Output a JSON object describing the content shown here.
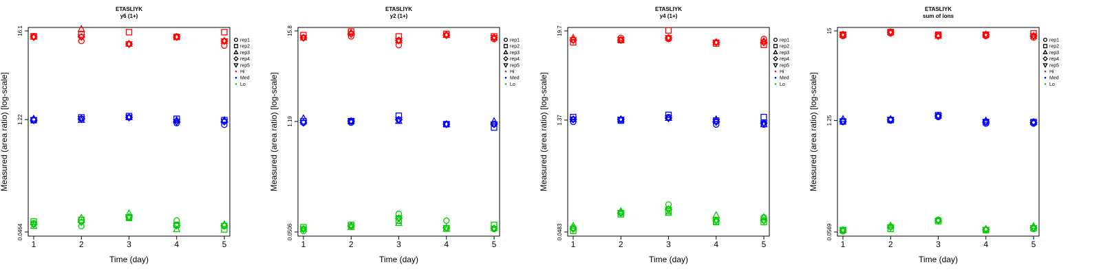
{
  "chart_data": [
    {
      "type": "scatter",
      "title": "ETASLIYK",
      "subtitle": "y6 (1+)",
      "xlabel": "Time (day)",
      "ylabel": "Measured (area ratio) [log-scale]",
      "log_y": true,
      "x_ticks": [
        1,
        2,
        3,
        4,
        5
      ],
      "y_ticks": [
        {
          "value": 0.0464,
          "label": "0.0464"
        },
        {
          "value": 1.22,
          "label": "1.22"
        },
        {
          "value": 16.1,
          "label": "16.1"
        }
      ],
      "ylim": [
        0.0464,
        16.1
      ],
      "legend_position": "right",
      "series": [
        {
          "rep": "rep1",
          "level": "Hi",
          "values": [
            13.5,
            12.0,
            11.0,
            13.5,
            10.5
          ]
        },
        {
          "rep": "rep2",
          "level": "Hi",
          "values": [
            13.8,
            14.5,
            15.5,
            13.5,
            15.5
          ]
        },
        {
          "rep": "rep3",
          "level": "Hi",
          "values": [
            13.5,
            17.0,
            11.0,
            13.5,
            12.0
          ]
        },
        {
          "rep": "rep4",
          "level": "Hi",
          "values": [
            13.5,
            13.5,
            11.0,
            13.5,
            12.0
          ]
        },
        {
          "rep": "rep5",
          "level": "Hi",
          "values": [
            13.5,
            13.5,
            11.0,
            13.5,
            12.0
          ]
        },
        {
          "rep": "rep1",
          "level": "Med",
          "values": [
            1.2,
            1.25,
            1.3,
            1.1,
            1.05
          ]
        },
        {
          "rep": "rep2",
          "level": "Med",
          "values": [
            1.2,
            1.3,
            1.35,
            1.25,
            1.2
          ]
        },
        {
          "rep": "rep3",
          "level": "Med",
          "values": [
            1.25,
            1.2,
            1.3,
            1.2,
            1.2
          ]
        },
        {
          "rep": "rep4",
          "level": "Med",
          "values": [
            1.2,
            1.25,
            1.3,
            1.15,
            1.15
          ]
        },
        {
          "rep": "rep5",
          "level": "Med",
          "values": [
            1.2,
            1.25,
            1.3,
            1.15,
            1.15
          ]
        },
        {
          "rep": "rep1",
          "level": "Lo",
          "values": [
            0.06,
            0.055,
            0.07,
            0.065,
            0.055
          ]
        },
        {
          "rep": "rep2",
          "level": "Lo",
          "values": [
            0.063,
            0.066,
            0.07,
            0.057,
            0.05
          ]
        },
        {
          "rep": "rep3",
          "level": "Lo",
          "values": [
            0.055,
            0.07,
            0.08,
            0.05,
            0.058
          ]
        },
        {
          "rep": "rep4",
          "level": "Lo",
          "values": [
            0.058,
            0.062,
            0.072,
            0.056,
            0.056
          ]
        },
        {
          "rep": "rep5",
          "level": "Lo",
          "values": [
            0.058,
            0.062,
            0.072,
            0.056,
            0.056
          ]
        }
      ]
    },
    {
      "type": "scatter",
      "title": "ETASLIYK",
      "subtitle": "y2 (1+)",
      "xlabel": "Time (day)",
      "ylabel": "Measured (area ratio) [log-scale]",
      "log_y": true,
      "x_ticks": [
        1,
        2,
        3,
        4,
        5
      ],
      "y_ticks": [
        {
          "value": 0.0506,
          "label": "0.0506"
        },
        {
          "value": 1.19,
          "label": "1.19"
        },
        {
          "value": 15.8,
          "label": "15.8"
        }
      ],
      "ylim": [
        0.0506,
        15.8
      ],
      "legend_position": "right",
      "series": [
        {
          "rep": "rep1",
          "level": "Hi",
          "values": [
            13.0,
            13.5,
            10.5,
            14.0,
            12.5
          ]
        },
        {
          "rep": "rep2",
          "level": "Hi",
          "values": [
            14.0,
            15.5,
            13.5,
            14.5,
            13.5
          ]
        },
        {
          "rep": "rep3",
          "level": "Hi",
          "values": [
            13.0,
            15.0,
            12.0,
            14.0,
            13.0
          ]
        },
        {
          "rep": "rep4",
          "level": "Hi",
          "values": [
            13.0,
            14.5,
            12.0,
            14.0,
            13.0
          ]
        },
        {
          "rep": "rep5",
          "level": "Hi",
          "values": [
            13.0,
            14.5,
            12.0,
            14.0,
            13.0
          ]
        },
        {
          "rep": "rep1",
          "level": "Med",
          "values": [
            1.15,
            1.15,
            1.25,
            1.1,
            1.1
          ]
        },
        {
          "rep": "rep2",
          "level": "Med",
          "values": [
            1.2,
            1.2,
            1.4,
            1.1,
            1.0
          ]
        },
        {
          "rep": "rep3",
          "level": "Med",
          "values": [
            1.3,
            1.2,
            1.2,
            1.1,
            1.2
          ]
        },
        {
          "rep": "rep4",
          "level": "Med",
          "values": [
            1.15,
            1.2,
            1.25,
            1.1,
            1.1
          ]
        },
        {
          "rep": "rep5",
          "level": "Med",
          "values": [
            1.15,
            1.2,
            1.25,
            1.1,
            1.1
          ]
        },
        {
          "rep": "rep1",
          "level": "Lo",
          "values": [
            0.052,
            0.06,
            0.085,
            0.07,
            0.055
          ]
        },
        {
          "rep": "rep2",
          "level": "Lo",
          "values": [
            0.058,
            0.062,
            0.07,
            0.056,
            0.062
          ]
        },
        {
          "rep": "rep3",
          "level": "Lo",
          "values": [
            0.055,
            0.058,
            0.065,
            0.055,
            0.056
          ]
        },
        {
          "rep": "rep4",
          "level": "Lo",
          "values": [
            0.055,
            0.06,
            0.075,
            0.057,
            0.056
          ]
        },
        {
          "rep": "rep5",
          "level": "Lo",
          "values": [
            0.055,
            0.06,
            0.075,
            0.057,
            0.056
          ]
        }
      ]
    },
    {
      "type": "scatter",
      "title": "ETASLIYK",
      "subtitle": "y4 (1+)",
      "xlabel": "Time (day)",
      "ylabel": "Measured (area ratio) [log-scale]",
      "log_y": true,
      "x_ticks": [
        1,
        2,
        3,
        4,
        5
      ],
      "y_ticks": [
        {
          "value": 0.0483,
          "label": "0.0483"
        },
        {
          "value": 1.37,
          "label": "1.37"
        },
        {
          "value": 19.7,
          "label": "19.7"
        }
      ],
      "ylim": [
        0.0483,
        19.7
      ],
      "legend_position": "right",
      "series": [
        {
          "rep": "rep1",
          "level": "Hi",
          "values": [
            15.0,
            16.0,
            15.5,
            14.0,
            15.5
          ]
        },
        {
          "rep": "rep2",
          "level": "Hi",
          "values": [
            14.0,
            15.0,
            20.0,
            13.5,
            13.0
          ]
        },
        {
          "rep": "rep3",
          "level": "Hi",
          "values": [
            16.0,
            15.0,
            16.0,
            14.0,
            14.5
          ]
        },
        {
          "rep": "rep4",
          "level": "Hi",
          "values": [
            15.0,
            15.0,
            16.0,
            14.0,
            14.0
          ]
        },
        {
          "rep": "rep5",
          "level": "Hi",
          "values": [
            15.0,
            15.0,
            16.0,
            14.0,
            14.0
          ]
        },
        {
          "rep": "rep1",
          "level": "Med",
          "values": [
            1.3,
            1.35,
            1.5,
            1.2,
            1.2
          ]
        },
        {
          "rep": "rep2",
          "level": "Med",
          "values": [
            1.5,
            1.35,
            1.6,
            1.35,
            1.5
          ]
        },
        {
          "rep": "rep3",
          "level": "Med",
          "values": [
            1.4,
            1.4,
            1.45,
            1.4,
            1.2
          ]
        },
        {
          "rep": "rep4",
          "level": "Med",
          "values": [
            1.4,
            1.4,
            1.45,
            1.3,
            1.25
          ]
        },
        {
          "rep": "rep5",
          "level": "Med",
          "values": [
            1.4,
            1.4,
            1.45,
            1.3,
            1.25
          ]
        },
        {
          "rep": "rep1",
          "level": "Lo",
          "values": [
            0.055,
            0.085,
            0.11,
            0.065,
            0.075
          ]
        },
        {
          "rep": "rep2",
          "level": "Lo",
          "values": [
            0.05,
            0.082,
            0.09,
            0.065,
            0.065
          ]
        },
        {
          "rep": "rep3",
          "level": "Lo",
          "values": [
            0.058,
            0.09,
            0.085,
            0.08,
            0.075
          ]
        },
        {
          "rep": "rep4",
          "level": "Lo",
          "values": [
            0.053,
            0.086,
            0.095,
            0.068,
            0.068
          ]
        },
        {
          "rep": "rep5",
          "level": "Lo",
          "values": [
            0.053,
            0.086,
            0.095,
            0.068,
            0.068
          ]
        }
      ]
    },
    {
      "type": "scatter",
      "title": "ETASLIYK",
      "subtitle": "sum of ions",
      "xlabel": "Time (day)",
      "ylabel": "Measured (area ratio) [log-scale]",
      "log_y": true,
      "x_ticks": [
        1,
        2,
        3,
        4,
        5
      ],
      "y_ticks": [
        {
          "value": 0.0569,
          "label": "0.0569"
        },
        {
          "value": 1.25,
          "label": "1.25"
        },
        {
          "value": 15,
          "label": "15"
        }
      ],
      "ylim": [
        0.0569,
        15
      ],
      "legend_position": "right",
      "series": [
        {
          "rep": "rep1",
          "level": "Hi",
          "values": [
            13.0,
            14.0,
            13.5,
            13.0,
            12.5
          ]
        },
        {
          "rep": "rep2",
          "level": "Hi",
          "values": [
            13.5,
            14.5,
            13.5,
            13.5,
            14.0
          ]
        },
        {
          "rep": "rep3",
          "level": "Hi",
          "values": [
            13.5,
            14.5,
            13.0,
            13.5,
            13.0
          ]
        },
        {
          "rep": "rep4",
          "level": "Hi",
          "values": [
            13.5,
            14.5,
            13.0,
            13.5,
            13.0
          ]
        },
        {
          "rep": "rep5",
          "level": "Hi",
          "values": [
            13.5,
            14.5,
            13.0,
            13.5,
            13.0
          ]
        },
        {
          "rep": "rep1",
          "level": "Med",
          "values": [
            1.2,
            1.25,
            1.38,
            1.15,
            1.15
          ]
        },
        {
          "rep": "rep2",
          "level": "Med",
          "values": [
            1.22,
            1.27,
            1.45,
            1.2,
            1.2
          ]
        },
        {
          "rep": "rep3",
          "level": "Med",
          "values": [
            1.3,
            1.3,
            1.42,
            1.25,
            1.2
          ]
        },
        {
          "rep": "rep4",
          "level": "Med",
          "values": [
            1.22,
            1.27,
            1.42,
            1.2,
            1.18
          ]
        },
        {
          "rep": "rep5",
          "level": "Med",
          "values": [
            1.22,
            1.27,
            1.42,
            1.2,
            1.18
          ]
        },
        {
          "rep": "rep1",
          "level": "Lo",
          "values": [
            0.058,
            0.066,
            0.08,
            0.06,
            0.062
          ]
        },
        {
          "rep": "rep2",
          "level": "Lo",
          "values": [
            0.06,
            0.062,
            0.077,
            0.06,
            0.063
          ]
        },
        {
          "rep": "rep3",
          "level": "Lo",
          "values": [
            0.06,
            0.068,
            0.079,
            0.062,
            0.067
          ]
        },
        {
          "rep": "rep4",
          "level": "Lo",
          "values": [
            0.06,
            0.065,
            0.078,
            0.061,
            0.064
          ]
        },
        {
          "rep": "rep5",
          "level": "Lo",
          "values": [
            0.06,
            0.065,
            0.078,
            0.061,
            0.064
          ]
        }
      ]
    }
  ],
  "legend": {
    "reps": [
      {
        "label": "rep1",
        "symbol": "circle"
      },
      {
        "label": "rep2",
        "symbol": "square"
      },
      {
        "label": "rep3",
        "symbol": "triangle-up"
      },
      {
        "label": "rep4",
        "symbol": "diamond"
      },
      {
        "label": "rep5",
        "symbol": "triangle-down"
      }
    ],
    "levels": [
      {
        "label": "Hi",
        "color": "#ff0000"
      },
      {
        "label": "Med",
        "color": "#0000ff"
      },
      {
        "label": "Lo",
        "color": "#00cc00"
      }
    ]
  }
}
